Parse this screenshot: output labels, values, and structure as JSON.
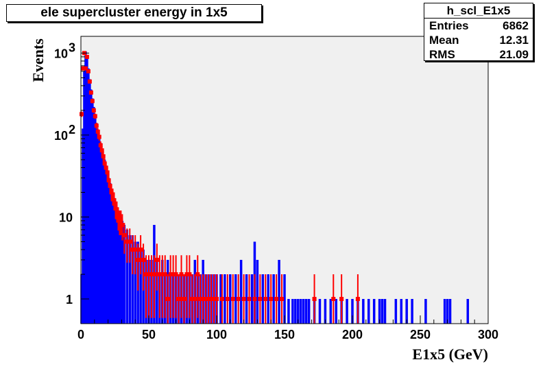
{
  "title": "ele supercluster energy in 1x5",
  "stats": {
    "name": "h_scl_E1x5",
    "rows": [
      {
        "label": "Entries",
        "value": "6862"
      },
      {
        "label": "Mean",
        "value": "12.31"
      },
      {
        "label": "RMS",
        "value": "21.09"
      }
    ]
  },
  "chart_data": {
    "type": "histogram",
    "title": "ele supercluster energy in 1x5",
    "xlabel": "E1x5 (GeV)",
    "ylabel": "Events",
    "xlim": [
      0,
      300
    ],
    "ylim": [
      0.5,
      1600
    ],
    "yscale": "log",
    "x_ticks": [
      0,
      50,
      100,
      150,
      200,
      250,
      300
    ],
    "y_ticks": [
      {
        "value": 1,
        "label": "1"
      },
      {
        "value": 10,
        "label": "10"
      },
      {
        "value": 100,
        "label": "10",
        "exp": "2"
      },
      {
        "value": 1000,
        "label": "10",
        "exp": "3"
      }
    ],
    "grid": false,
    "frame_fill": "#f0f0f0",
    "series": [
      {
        "color": "#0000ff",
        "style": "histogram",
        "x": [
          0.5,
          1.5,
          2.5,
          3.5,
          4.5,
          5.5,
          6.5,
          7.5,
          8.5,
          9.5,
          10.5,
          11.5,
          12.5,
          13.5,
          14.5,
          15.5,
          16.5,
          17.5,
          18.5,
          19.5,
          20.5,
          21.5,
          22.5,
          23.5,
          24.5,
          25.5,
          26.5,
          27.5,
          28.5,
          29.5,
          30.5,
          32,
          34,
          36,
          38,
          40,
          42,
          44,
          46,
          48,
          50,
          52,
          54,
          56,
          58,
          60,
          62,
          64,
          66,
          68,
          70,
          72,
          74,
          76,
          78,
          80,
          82,
          84,
          86,
          88,
          90,
          92,
          94,
          96,
          98,
          100,
          103,
          106,
          110,
          114,
          118,
          122,
          126,
          128,
          130,
          134,
          138,
          142,
          146,
          150,
          153,
          156,
          158,
          160,
          162,
          164,
          166,
          168,
          172,
          176,
          180,
          184,
          188,
          192,
          196,
          200,
          204,
          208,
          212,
          216,
          220,
          222,
          224,
          232,
          236,
          240,
          244,
          254,
          268,
          270,
          272,
          285
        ],
        "y": [
          2,
          120,
          600,
          1050,
          900,
          650,
          480,
          360,
          280,
          220,
          175,
          140,
          115,
          95,
          80,
          68,
          58,
          50,
          42,
          36,
          30,
          26,
          22,
          19,
          17,
          15,
          13,
          12,
          11,
          10,
          9,
          8,
          7,
          6,
          6,
          5,
          5,
          4,
          4,
          3,
          3,
          3,
          8,
          3,
          2,
          3,
          2,
          3,
          2,
          2,
          2,
          2,
          2,
          2,
          2,
          2,
          2,
          3,
          2,
          2,
          3,
          2,
          2,
          2,
          2,
          2,
          2,
          2,
          2,
          2,
          3,
          2,
          2,
          5,
          3,
          2,
          2,
          2,
          3,
          2,
          1,
          1,
          1,
          1,
          1,
          1,
          1,
          1,
          1,
          1,
          1,
          1,
          1,
          1,
          1,
          1,
          1,
          1,
          1,
          1,
          1,
          1,
          1,
          1,
          1,
          1,
          1,
          1,
          1,
          1,
          1,
          1
        ]
      },
      {
        "color": "#ff0000",
        "style": "markers-errors",
        "x": [
          0.5,
          1.5,
          2.5,
          3.5,
          4.5,
          5.5,
          6.5,
          7.5,
          8.5,
          9.5,
          10.5,
          11.5,
          12.5,
          13.5,
          14.5,
          15.5,
          16.5,
          17.5,
          18.5,
          19.5,
          20.5,
          21.5,
          22.5,
          23.5,
          24.5,
          25.5,
          26.5,
          27.5,
          28.5,
          29.5,
          30.5,
          32,
          34,
          36,
          38,
          40,
          42,
          44,
          46,
          48,
          50,
          52,
          54,
          56,
          58,
          60,
          62,
          64,
          66,
          68,
          70,
          72,
          74,
          76,
          78,
          80,
          82,
          84,
          86,
          88,
          90,
          92,
          94,
          96,
          98,
          100,
          104,
          108,
          112,
          116,
          120,
          124,
          128,
          132,
          136,
          140,
          144,
          148,
          172,
          186,
          192,
          204
        ],
        "y": [
          180,
          650,
          1000,
          650,
          900,
          600,
          450,
          330,
          260,
          200,
          170,
          130,
          110,
          95,
          75,
          65,
          55,
          45,
          40,
          35,
          28,
          24,
          20,
          18,
          16,
          13,
          12,
          10,
          9,
          9,
          8,
          6,
          5,
          5,
          4,
          4,
          3,
          4,
          3,
          2,
          2,
          2,
          2,
          3,
          2,
          2,
          2,
          1,
          2,
          2,
          2,
          1,
          2,
          1,
          2,
          2,
          1,
          1,
          2,
          1,
          1,
          1,
          1,
          1,
          1,
          1,
          1,
          1,
          1,
          1,
          1,
          1,
          1,
          1,
          1,
          1,
          1,
          1,
          1,
          1,
          1,
          1
        ]
      }
    ]
  }
}
